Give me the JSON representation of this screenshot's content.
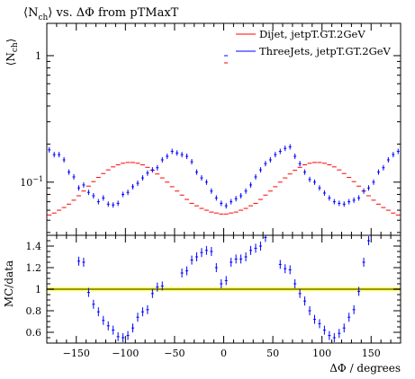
{
  "chart_data": {
    "type": "scatter",
    "title": "⟨N_ch⟩ vs. ΔΦ from pTMaxT",
    "title_parts": {
      "prefix": "⟨N",
      "sub": "ch",
      "suffix": "⟩ vs. ΔΦ from pTMaxT"
    },
    "top_panel": {
      "ylabel_parts": {
        "prefix": "⟨N",
        "sub": "ch",
        "suffix": "⟩"
      },
      "yscale": "log",
      "ylim": [
        0.038,
        1.8
      ],
      "yticks": [
        {
          "value": 1,
          "label": "1"
        },
        {
          "value": 0.1,
          "label": "10",
          "exp": "−1"
        }
      ],
      "legend_position": "top-right",
      "series": [
        {
          "name": "Dijet, jetpT.GT.2GeV",
          "color": "#ff0000",
          "x": [
            -177.5,
            -172.5,
            -167.5,
            -162.5,
            -157.5,
            -152.5,
            -147.5,
            -142.5,
            -137.5,
            -132.5,
            -127.5,
            -122.5,
            -117.5,
            -112.5,
            -107.5,
            -102.5,
            -97.5,
            -92.5,
            -87.5,
            -82.5,
            -77.5,
            -72.5,
            -67.5,
            -62.5,
            -57.5,
            -52.5,
            -47.5,
            -42.5,
            -37.5,
            -32.5,
            -27.5,
            -22.5,
            -17.5,
            -12.5,
            -7.5,
            -2.5,
            2.5,
            7.5,
            12.5,
            17.5,
            22.5,
            27.5,
            32.5,
            37.5,
            42.5,
            47.5,
            52.5,
            57.5,
            62.5,
            67.5,
            72.5,
            77.5,
            82.5,
            87.5,
            92.5,
            97.5,
            102.5,
            107.5,
            112.5,
            117.5,
            122.5,
            127.5,
            132.5,
            137.5,
            142.5,
            147.5,
            152.5,
            157.5,
            162.5,
            167.5,
            172.5,
            177.5
          ],
          "y": [
            0.055,
            0.057,
            0.06,
            0.063,
            0.067,
            0.072,
            0.078,
            0.085,
            0.093,
            0.101,
            0.109,
            0.117,
            0.125,
            0.132,
            0.137,
            0.141,
            0.143,
            0.143,
            0.141,
            0.137,
            0.131,
            0.124,
            0.116,
            0.108,
            0.1,
            0.092,
            0.085,
            0.079,
            0.073,
            0.068,
            0.065,
            0.062,
            0.06,
            0.058,
            0.057,
            0.056,
            0.056,
            0.057,
            0.058,
            0.06,
            0.062,
            0.065,
            0.068,
            0.073,
            0.079,
            0.085,
            0.092,
            0.1,
            0.108,
            0.116,
            0.124,
            0.131,
            0.137,
            0.141,
            0.143,
            0.143,
            0.141,
            0.137,
            0.132,
            0.125,
            0.117,
            0.109,
            0.101,
            0.093,
            0.085,
            0.078,
            0.072,
            0.067,
            0.063,
            0.06,
            0.057,
            0.055
          ]
        },
        {
          "name": "ThreeJets, jetpT.GT.2GeV",
          "color": "#0000ff",
          "x": [
            -177.5,
            -172.5,
            -167.5,
            -162.5,
            -157.5,
            -152.5,
            -147.5,
            -142.5,
            -137.5,
            -132.5,
            -127.5,
            -122.5,
            -117.5,
            -112.5,
            -107.5,
            -102.5,
            -97.5,
            -92.5,
            -87.5,
            -82.5,
            -77.5,
            -72.5,
            -67.5,
            -62.5,
            -57.5,
            -52.5,
            -47.5,
            -42.5,
            -37.5,
            -32.5,
            -27.5,
            -22.5,
            -17.5,
            -12.5,
            -7.5,
            -2.5,
            2.5,
            7.5,
            12.5,
            17.5,
            22.5,
            27.5,
            32.5,
            37.5,
            42.5,
            47.5,
            52.5,
            57.5,
            62.5,
            67.5,
            72.5,
            77.5,
            82.5,
            87.5,
            92.5,
            97.5,
            102.5,
            107.5,
            112.5,
            117.5,
            122.5,
            127.5,
            132.5,
            137.5,
            142.5,
            147.5,
            152.5,
            157.5,
            162.5,
            167.5,
            172.5,
            177.5
          ],
          "y": [
            0.18,
            0.165,
            0.165,
            0.15,
            0.12,
            0.11,
            0.09,
            0.095,
            0.083,
            0.078,
            0.07,
            0.075,
            0.067,
            0.066,
            0.068,
            0.08,
            0.083,
            0.092,
            0.098,
            0.108,
            0.118,
            0.125,
            0.13,
            0.15,
            0.16,
            0.175,
            0.17,
            0.165,
            0.16,
            0.145,
            0.12,
            0.108,
            0.1,
            0.085,
            0.075,
            0.068,
            0.065,
            0.07,
            0.074,
            0.078,
            0.085,
            0.095,
            0.11,
            0.125,
            0.14,
            0.15,
            0.165,
            0.175,
            0.185,
            0.19,
            0.16,
            0.14,
            0.12,
            0.105,
            0.1,
            0.09,
            0.082,
            0.075,
            0.07,
            0.068,
            0.067,
            0.07,
            0.072,
            0.075,
            0.085,
            0.09,
            0.1,
            0.12,
            0.13,
            0.15,
            0.165,
            0.175
          ]
        }
      ]
    },
    "bottom_panel": {
      "ylabel": "MC/data",
      "ylim": [
        0.5,
        1.5
      ],
      "yticks": [
        {
          "value": 0.6,
          "label": "0.6"
        },
        {
          "value": 0.8,
          "label": "0.8"
        },
        {
          "value": 1,
          "label": "1"
        },
        {
          "value": 1.2,
          "label": "1.2"
        },
        {
          "value": 1.4,
          "label": "1.4"
        }
      ],
      "reference_line": 1.0,
      "reference_color": "#ffff00",
      "ratio_x": [
        -147.5,
        -142.5,
        -137.5,
        -132.5,
        -127.5,
        -122.5,
        -117.5,
        -112.5,
        -107.5,
        -102.5,
        -97.5,
        -92.5,
        -87.5,
        -82.5,
        -77.5,
        -72.5,
        -67.5,
        -62.5,
        -42.5,
        -37.5,
        -32.5,
        -27.5,
        -22.5,
        -17.5,
        -12.5,
        -7.5,
        -2.5,
        2.5,
        7.5,
        12.5,
        17.5,
        22.5,
        27.5,
        32.5,
        37.5,
        42.5,
        57.5,
        62.5,
        67.5,
        72.5,
        77.5,
        82.5,
        87.5,
        92.5,
        97.5,
        102.5,
        107.5,
        112.5,
        117.5,
        122.5,
        127.5,
        132.5,
        137.5,
        142.5,
        147.5
      ],
      "ratio_y": [
        1.26,
        1.25,
        0.97,
        0.86,
        0.79,
        0.71,
        0.66,
        0.62,
        0.56,
        0.55,
        0.57,
        0.64,
        0.74,
        0.79,
        0.81,
        0.96,
        1.02,
        1.03,
        1.15,
        1.17,
        1.27,
        1.3,
        1.34,
        1.36,
        1.35,
        1.2,
        1.05,
        1.08,
        1.25,
        1.28,
        1.28,
        1.3,
        1.36,
        1.38,
        1.4,
        1.48,
        1.23,
        1.19,
        1.18,
        1.05,
        0.96,
        0.89,
        0.8,
        0.72,
        0.68,
        0.62,
        0.57,
        0.55,
        0.59,
        0.64,
        0.74,
        0.81,
        0.98,
        1.25,
        1.45
      ]
    },
    "xlabel": "ΔΦ / degrees",
    "xlim": [
      -180,
      180
    ],
    "xticks": [
      {
        "value": -150,
        "label": "−150"
      },
      {
        "value": -100,
        "label": "−100"
      },
      {
        "value": -50,
        "label": "−50"
      },
      {
        "value": 0,
        "label": "0"
      },
      {
        "value": 50,
        "label": "50"
      },
      {
        "value": 100,
        "label": "100"
      },
      {
        "value": 150,
        "label": "150"
      }
    ]
  }
}
